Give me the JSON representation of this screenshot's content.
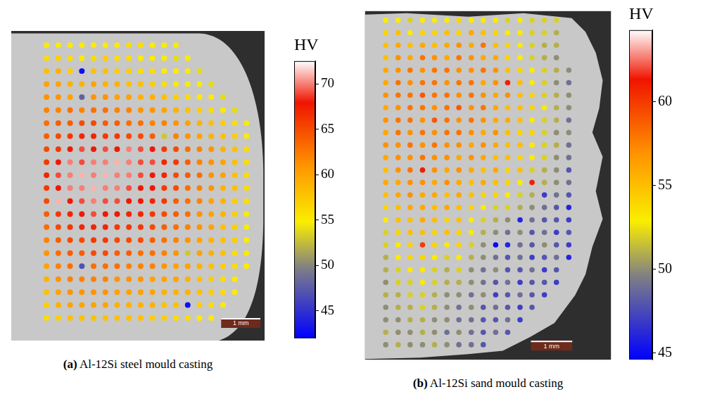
{
  "chart_data": [
    {
      "type": "scatter",
      "panel_label": "(a)",
      "title": "Al-12Si steel mould casting",
      "tick_labels": false,
      "marker": "circle",
      "xlim": [
        0,
        6.46
      ],
      "ylim": [
        0,
        7.86
      ],
      "x": [
        0.9,
        1.2,
        1.5,
        1.8,
        2.1,
        2.4,
        2.7,
        3.0,
        3.3,
        3.6,
        3.9,
        4.2,
        4.5,
        4.8,
        5.1,
        5.4,
        5.7,
        6.0
      ],
      "y": [
        7.5,
        7.17,
        6.84,
        6.51,
        6.18,
        5.85,
        5.52,
        5.19,
        4.86,
        4.53,
        4.2,
        3.87,
        3.54,
        3.21,
        2.88,
        2.55,
        2.22,
        1.89,
        1.56,
        1.23,
        0.9,
        0.57
      ],
      "cells": [
        [
          55,
          55,
          55,
          55,
          55,
          55,
          55,
          56,
          56,
          55,
          55,
          55,
          null,
          null,
          null,
          null,
          null,
          null
        ],
        [
          56,
          57,
          56,
          55,
          56,
          57,
          56,
          56,
          55,
          55,
          55,
          54,
          55,
          null,
          null,
          null,
          null,
          null
        ],
        [
          58,
          59,
          57,
          43,
          58,
          58,
          57,
          57,
          56,
          56,
          55,
          55,
          55,
          54,
          null,
          null,
          null,
          null
        ],
        [
          60,
          60,
          59,
          59,
          60,
          59,
          59,
          58,
          58,
          57,
          56,
          55,
          55,
          55,
          54,
          null,
          null,
          null
        ],
        [
          61,
          61,
          60,
          48,
          61,
          61,
          60,
          60,
          59,
          59,
          58,
          57,
          56,
          55,
          55,
          54,
          null,
          null
        ],
        [
          62,
          62,
          63,
          62,
          63,
          63,
          62,
          62,
          61,
          61,
          60,
          59,
          58,
          57,
          56,
          55,
          54,
          null
        ],
        [
          63,
          64,
          64,
          65,
          65,
          64,
          64,
          63,
          63,
          62,
          62,
          61,
          60,
          59,
          58,
          57,
          56,
          55
        ],
        [
          64,
          65,
          66,
          67,
          67,
          66,
          66,
          65,
          65,
          64,
          53,
          62,
          61,
          60,
          59,
          58,
          57,
          55
        ],
        [
          65,
          66,
          68,
          69,
          68,
          69,
          68,
          70,
          69,
          68,
          66,
          65,
          63,
          62,
          61,
          59,
          58,
          56
        ],
        [
          66,
          68,
          70,
          69,
          70,
          70,
          71,
          70,
          69,
          69,
          67,
          66,
          64,
          62,
          61,
          60,
          58,
          56
        ],
        [
          67,
          69,
          70,
          71,
          70,
          71,
          70,
          70,
          69,
          68,
          67,
          65,
          64,
          63,
          61,
          60,
          58,
          56
        ],
        [
          66,
          68,
          70,
          70,
          71,
          70,
          70,
          69,
          68,
          68,
          66,
          65,
          63,
          62,
          61,
          59,
          58,
          56
        ],
        [
          65,
          71,
          68,
          69,
          70,
          69,
          69,
          68,
          68,
          67,
          66,
          64,
          63,
          62,
          60,
          59,
          57,
          56
        ],
        [
          64,
          66,
          67,
          68,
          69,
          68,
          68,
          67,
          67,
          66,
          65,
          64,
          63,
          61,
          60,
          59,
          57,
          55
        ],
        [
          63,
          65,
          66,
          67,
          67,
          67,
          66,
          66,
          66,
          65,
          64,
          63,
          62,
          61,
          60,
          58,
          57,
          55
        ],
        [
          62,
          64,
          65,
          65,
          66,
          66,
          65,
          65,
          65,
          64,
          63,
          62,
          61,
          60,
          59,
          58,
          57,
          55
        ],
        [
          61,
          63,
          64,
          64,
          65,
          65,
          64,
          64,
          63,
          63,
          62,
          61,
          53,
          60,
          59,
          58,
          56,
          55
        ],
        [
          60,
          62,
          63,
          47,
          63,
          63,
          63,
          62,
          62,
          62,
          61,
          60,
          60,
          59,
          58,
          57,
          56,
          55
        ],
        [
          59,
          61,
          62,
          62,
          62,
          62,
          61,
          61,
          61,
          60,
          60,
          60,
          59,
          58,
          57,
          56,
          55,
          null
        ],
        [
          58,
          60,
          61,
          61,
          61,
          61,
          60,
          60,
          60,
          60,
          59,
          59,
          59,
          58,
          57,
          56,
          55,
          null
        ],
        [
          57,
          59,
          60,
          60,
          60,
          60,
          59,
          59,
          59,
          59,
          58,
          58,
          43,
          57,
          56,
          55,
          null,
          null
        ],
        [
          56,
          57,
          58,
          58,
          58,
          58,
          58,
          58,
          58,
          57,
          57,
          56,
          56,
          55,
          55,
          null,
          null,
          null
        ]
      ],
      "colorbar": {
        "label": "HV",
        "range": [
          42,
          72.5
        ],
        "ticks": [
          45,
          50,
          55,
          60,
          65,
          70
        ]
      },
      "scale_bar": {
        "length": 1,
        "label": "1 mm"
      }
    },
    {
      "type": "scatter",
      "panel_label": "(b)",
      "title": "Al-12Si sand mould casting",
      "tick_labels": false,
      "marker": "circle",
      "xlim": [
        0,
        5.95
      ],
      "ylim": [
        0,
        8.38
      ],
      "x": [
        0.5,
        0.8,
        1.09,
        1.39,
        1.68,
        1.98,
        2.27,
        2.57,
        2.86,
        3.16,
        3.45,
        3.75,
        4.04,
        4.34,
        4.63,
        4.93
      ],
      "y": [
        8.16,
        7.86,
        7.56,
        7.26,
        6.96,
        6.66,
        6.36,
        6.06,
        5.76,
        5.46,
        5.16,
        4.86,
        4.56,
        4.26,
        3.96,
        3.66,
        3.36,
        3.06,
        2.76,
        2.46,
        2.16,
        1.86,
        1.56,
        1.26,
        0.96,
        0.66,
        0.36
      ],
      "cells": [
        [
          53,
          53,
          52,
          53,
          53,
          53,
          54,
          53,
          53,
          53,
          52,
          53,
          52,
          52,
          52,
          null
        ],
        [
          54,
          55,
          53,
          54,
          54,
          55,
          54,
          56,
          55,
          54,
          53,
          53,
          52,
          52,
          51,
          null
        ],
        [
          55,
          56,
          55,
          56,
          55,
          56,
          57,
          56,
          58,
          55,
          54,
          53,
          52,
          51,
          51,
          null
        ],
        [
          55,
          57,
          56,
          58,
          57,
          56,
          58,
          57,
          56,
          56,
          54,
          53,
          52,
          51,
          50,
          null
        ],
        [
          56,
          57,
          58,
          57,
          58,
          58,
          57,
          57,
          58,
          57,
          55,
          54,
          53,
          52,
          51,
          50
        ],
        [
          56,
          58,
          57,
          58,
          58,
          57,
          58,
          58,
          56,
          57,
          61,
          55,
          53,
          52,
          50,
          49
        ],
        [
          57,
          58,
          58,
          59,
          58,
          58,
          57,
          58,
          57,
          56,
          57,
          55,
          54,
          52,
          51,
          50
        ],
        [
          56,
          57,
          58,
          58,
          57,
          58,
          59,
          57,
          58,
          56,
          55,
          55,
          54,
          53,
          51,
          50
        ],
        [
          57,
          58,
          58,
          57,
          59,
          58,
          57,
          58,
          57,
          56,
          56,
          55,
          53,
          52,
          51,
          49
        ],
        [
          56,
          58,
          57,
          58,
          57,
          58,
          58,
          57,
          56,
          57,
          55,
          54,
          54,
          52,
          50,
          50
        ],
        [
          57,
          57,
          58,
          57,
          58,
          57,
          57,
          56,
          57,
          56,
          55,
          55,
          53,
          52,
          51,
          49
        ],
        [
          56,
          57,
          57,
          58,
          57,
          57,
          56,
          57,
          56,
          55,
          55,
          54,
          53,
          52,
          50,
          49
        ],
        [
          55,
          57,
          58,
          61,
          57,
          56,
          57,
          56,
          55,
          56,
          54,
          55,
          52,
          51,
          50,
          48
        ],
        [
          56,
          56,
          57,
          57,
          56,
          57,
          56,
          55,
          56,
          55,
          54,
          53,
          61,
          51,
          50,
          49
        ],
        [
          55,
          56,
          57,
          56,
          56,
          55,
          56,
          55,
          54,
          54,
          53,
          52,
          51,
          47,
          49,
          48
        ],
        [
          54,
          55,
          56,
          56,
          55,
          56,
          55,
          54,
          53,
          52,
          52,
          51,
          50,
          49,
          48,
          46
        ],
        [
          53,
          55,
          55,
          56,
          55,
          54,
          55,
          53,
          52,
          51,
          50,
          46,
          49,
          48,
          48,
          47
        ],
        [
          52,
          54,
          55,
          55,
          54,
          55,
          54,
          53,
          51,
          50,
          49,
          50,
          48,
          49,
          47,
          48
        ],
        [
          52,
          53,
          54,
          60,
          54,
          53,
          54,
          52,
          50,
          45,
          46,
          49,
          48,
          50,
          48,
          47
        ],
        [
          51,
          53,
          54,
          54,
          53,
          52,
          53,
          51,
          50,
          49,
          48,
          49,
          47,
          48,
          49,
          46
        ],
        [
          51,
          52,
          53,
          53,
          52,
          51,
          52,
          50,
          49,
          50,
          48,
          48,
          49,
          47,
          48,
          null
        ],
        [
          50,
          52,
          52,
          53,
          52,
          51,
          51,
          50,
          49,
          48,
          49,
          47,
          48,
          48,
          47,
          null
        ],
        [
          51,
          51,
          52,
          52,
          51,
          50,
          50,
          49,
          50,
          47,
          48,
          49,
          48,
          47,
          null,
          null
        ],
        [
          50,
          51,
          51,
          52,
          51,
          50,
          49,
          50,
          48,
          49,
          48,
          47,
          48,
          null,
          null,
          null
        ],
        [
          50,
          50,
          51,
          51,
          50,
          50,
          49,
          49,
          48,
          48,
          49,
          47,
          null,
          null,
          null,
          null
        ],
        [
          51,
          50,
          50,
          51,
          50,
          49,
          50,
          49,
          48,
          49,
          48,
          null,
          null,
          null,
          null,
          null
        ],
        [
          50,
          51,
          50,
          50,
          51,
          50,
          49,
          49,
          48,
          null,
          null,
          null,
          null,
          null,
          null,
          null
        ]
      ],
      "colorbar": {
        "label": "HV",
        "range": [
          44.6,
          64.3
        ],
        "ticks": [
          45,
          50,
          55,
          60
        ]
      },
      "scale_bar": {
        "length": 1,
        "label": "1 mm"
      }
    }
  ]
}
